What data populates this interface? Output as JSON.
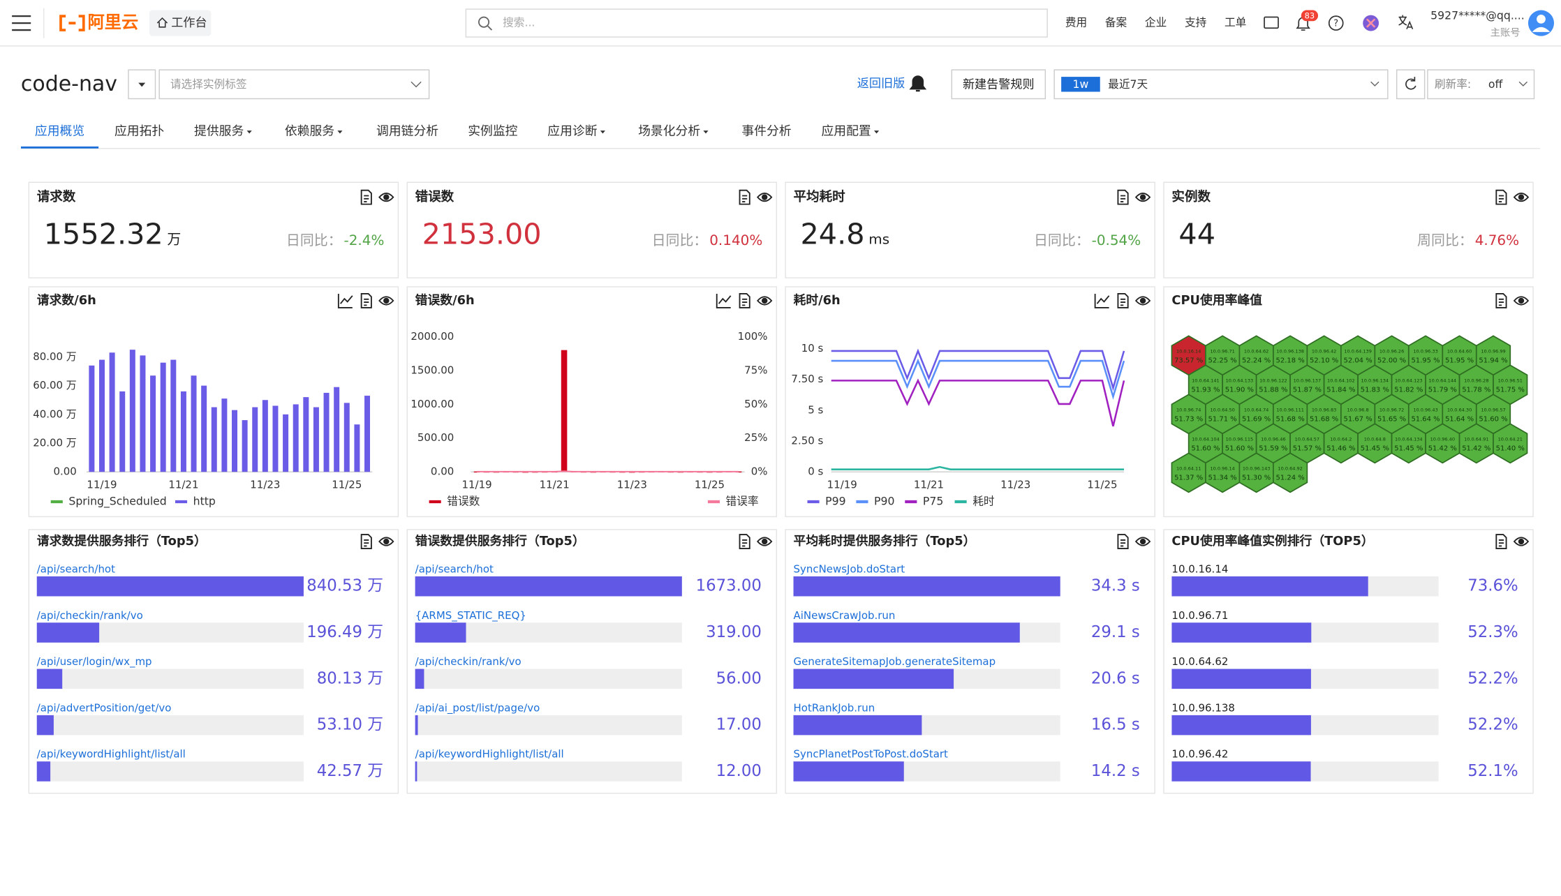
{
  "header": {
    "logo": "阿里云",
    "workbench": "工作台",
    "search_placeholder": "搜索...",
    "nav": [
      "费用",
      "备案",
      "企业",
      "支持",
      "工单"
    ],
    "notifications": "83",
    "account": "5927*****@qq....",
    "account_type": "主账号"
  },
  "toolbar": {
    "app": "code-nav",
    "instance_placeholder": "请选择实例标签",
    "back": "返回旧版",
    "new_alert": "新建告警规则",
    "range_tag": "1w",
    "range": "最近7天",
    "refresh_label": "刷新率:",
    "refresh": "off"
  },
  "tabs": [
    {
      "label": "应用概览",
      "active": true,
      "dropdown": false
    },
    {
      "label": "应用拓扑",
      "active": false,
      "dropdown": false
    },
    {
      "label": "提供服务",
      "active": false,
      "dropdown": true
    },
    {
      "label": "依赖服务",
      "active": false,
      "dropdown": true
    },
    {
      "label": "调用链分析",
      "active": false,
      "dropdown": false
    },
    {
      "label": "实例监控",
      "active": false,
      "dropdown": false
    },
    {
      "label": "应用诊断",
      "active": false,
      "dropdown": true
    },
    {
      "label": "场景化分析",
      "active": false,
      "dropdown": true
    },
    {
      "label": "事件分析",
      "active": false,
      "dropdown": false
    },
    {
      "label": "应用配置",
      "active": false,
      "dropdown": true
    }
  ],
  "stats": [
    {
      "title": "请求数",
      "value": "1552.32",
      "unit": "万",
      "compare_label": "日同比：",
      "change": "-2.4%",
      "change_color": "#52a447"
    },
    {
      "title": "错误数",
      "value": "2153.00",
      "value_color": "#d0313d",
      "compare_label": "日同比：",
      "change": "0.140%",
      "change_color": "#d0313d"
    },
    {
      "title": "平均耗时",
      "value": "24.8",
      "unit": "ms",
      "compare_label": "日同比：",
      "change": "-0.54%",
      "change_color": "#52a447"
    },
    {
      "title": "实例数",
      "value": "44",
      "compare_label": "周同比：",
      "change": "4.76%",
      "change_color": "#d0313d"
    }
  ],
  "chart_data": [
    {
      "type": "bar",
      "title": "请求数/6h",
      "categories": [
        null,
        "11/19",
        null,
        null,
        null,
        null,
        null,
        null,
        null,
        "11/21",
        null,
        null,
        null,
        null,
        null,
        null,
        null,
        "11/23",
        null,
        null,
        null,
        null,
        null,
        null,
        null,
        "11/25",
        null,
        null
      ],
      "series": [
        {
          "name": "Spring_Scheduled",
          "color": "#52b043",
          "values": [
            0,
            0,
            0,
            0,
            0,
            0,
            0,
            0,
            0,
            0,
            0,
            0,
            0,
            0,
            0,
            0,
            0,
            0,
            0,
            0,
            0,
            0,
            0,
            0,
            0,
            0,
            0,
            0
          ]
        },
        {
          "name": "http",
          "color": "#6b5ce7",
          "values": [
            74,
            78,
            83,
            56,
            85,
            81,
            67,
            76,
            78,
            56,
            67,
            60,
            45,
            51,
            43,
            36,
            45,
            50,
            46,
            40,
            47,
            52,
            45,
            55,
            59,
            48,
            33,
            53
          ]
        }
      ],
      "ylim": [
        0,
        90
      ],
      "yticks": [
        {
          "value": 0,
          "label": "0.00"
        },
        {
          "value": 20,
          "label": "20.00 万"
        },
        {
          "value": 40,
          "label": "40.00 万"
        },
        {
          "value": 60,
          "label": "60.00 万"
        },
        {
          "value": 80,
          "label": "80.00 万"
        }
      ]
    },
    {
      "type": "combo",
      "title": "错误数/6h",
      "categories": [
        "11/19",
        null,
        null,
        null,
        null,
        null,
        null,
        null,
        "11/21",
        null,
        null,
        null,
        null,
        null,
        null,
        null,
        "11/23",
        null,
        null,
        null,
        null,
        null,
        null,
        null,
        "11/25",
        null,
        null,
        null
      ],
      "series": [
        {
          "name": "错误数",
          "color": "#d0021b",
          "mark": "bar",
          "values": [
            6,
            5,
            4,
            6,
            5,
            3,
            4,
            5,
            6,
            1800,
            8,
            5,
            4,
            6,
            5,
            4,
            3,
            5,
            6,
            7,
            5,
            4,
            6,
            5,
            4,
            5,
            7,
            6
          ]
        },
        {
          "name": "错误率",
          "color": "#f5799a",
          "mark": "line",
          "axis": "y2",
          "values": [
            0.2,
            0.2,
            0.2,
            0.2,
            0.2,
            0.2,
            0.2,
            0.2,
            0.2,
            0.5,
            0.2,
            0.2,
            0.2,
            0.2,
            0.2,
            0.2,
            0.2,
            0.2,
            0.2,
            0.2,
            0.2,
            0.2,
            0.2,
            0.2,
            0.2,
            0.2,
            0.2,
            0.2
          ]
        }
      ],
      "ylim": [
        0,
        2000
      ],
      "yticks": [
        {
          "value": 0,
          "label": "0.00"
        },
        {
          "value": 500,
          "label": "500.00"
        },
        {
          "value": 1000,
          "label": "1000.00"
        },
        {
          "value": 1500,
          "label": "1500.00"
        },
        {
          "value": 2000,
          "label": "2000.00"
        }
      ],
      "y2lim": [
        0,
        100
      ],
      "y2ticks": [
        {
          "value": 0,
          "label": "0%"
        },
        {
          "value": 25,
          "label": "25%"
        },
        {
          "value": 50,
          "label": "50%"
        },
        {
          "value": 75,
          "label": "75%"
        },
        {
          "value": 100,
          "label": "100%"
        }
      ]
    },
    {
      "type": "line",
      "title": "耗时/6h",
      "categories": [
        null,
        "11/19",
        null,
        null,
        null,
        null,
        null,
        null,
        null,
        "11/21",
        null,
        null,
        null,
        null,
        null,
        null,
        null,
        "11/23",
        null,
        null,
        null,
        null,
        null,
        null,
        null,
        "11/25",
        null,
        null
      ],
      "series": [
        {
          "name": "P99",
          "color": "#6b5ce7",
          "values": [
            9.8,
            9.8,
            9.8,
            9.8,
            9.8,
            9.8,
            9.8,
            7.6,
            9.8,
            7.6,
            9.8,
            9.8,
            9.8,
            9.8,
            9.8,
            9.8,
            9.8,
            9.8,
            9.8,
            9.8,
            9.8,
            7.6,
            7.6,
            9.8,
            9.8,
            9.8,
            6.8,
            9.8
          ]
        },
        {
          "name": "P90",
          "color": "#5b8ff9",
          "values": [
            9.0,
            9.0,
            9.0,
            9.0,
            9.0,
            9.0,
            9.0,
            6.9,
            9.0,
            6.9,
            9.0,
            9.0,
            9.0,
            9.0,
            9.0,
            9.0,
            9.0,
            9.0,
            9.0,
            9.0,
            9.0,
            6.9,
            6.9,
            9.0,
            9.0,
            9.0,
            6.1,
            9.0
          ]
        },
        {
          "name": "P75",
          "color": "#a020c0",
          "values": [
            7.4,
            7.4,
            7.4,
            7.4,
            7.4,
            7.4,
            7.4,
            5.5,
            7.4,
            5.5,
            7.4,
            7.4,
            7.4,
            7.4,
            7.4,
            7.4,
            7.4,
            7.4,
            7.4,
            7.4,
            7.4,
            5.5,
            5.5,
            7.4,
            7.4,
            7.4,
            3.7,
            7.4
          ]
        },
        {
          "name": "耗时",
          "color": "#2bb5a0",
          "values": [
            0.2,
            0.2,
            0.2,
            0.2,
            0.2,
            0.2,
            0.2,
            0.2,
            0.2,
            0.2,
            0.4,
            0.2,
            0.2,
            0.2,
            0.2,
            0.2,
            0.2,
            0.2,
            0.2,
            0.2,
            0.2,
            0.2,
            0.2,
            0.2,
            0.2,
            0.2,
            0.2,
            0.2
          ]
        }
      ],
      "ylim": [
        0,
        10
      ],
      "yticks": [
        {
          "value": 0,
          "label": "0 s"
        },
        {
          "value": 2.5,
          "label": "2.50 s"
        },
        {
          "value": 5,
          "label": "5 s"
        },
        {
          "value": 7.5,
          "label": "7.50 s"
        },
        {
          "value": 10,
          "label": "10 s"
        }
      ]
    },
    {
      "type": "honeycomb",
      "title": "CPU使用率峰值",
      "color": "#55b23f",
      "highlight": "max",
      "highlight_color": "#c9252f",
      "labels": [
        "10.0.16.14",
        "10.0.96.71",
        "10.0.64.62",
        "10.0.96.138",
        "10.0.96.42",
        "10.0.64.139",
        "10.0.96.26",
        "10.0.96.33",
        "10.0.64.60",
        "10.0.96.99",
        "10.0.64.141",
        "10.0.64.133",
        "10.0.96.122",
        "10.0.96.137",
        "10.0.64.102",
        "10.0.96.134",
        "10.0.64.123",
        "10.0.64.144",
        "10.0.96.28",
        "10.0.96.51",
        "10.0.96.74",
        "10.0.64.50",
        "10.0.64.74",
        "10.0.96.111",
        "10.0.96.83",
        "10.0.96.8",
        "10.0.96.72",
        "10.0.96.43",
        "10.0.64.30",
        "10.0.96.57",
        "10.0.64.104",
        "10.0.96.115",
        "10.0.96.46",
        "10.0.64.57",
        "10.0.64.2",
        "10.0.64.8",
        "10.0.64.134",
        "10.0.96.40",
        "10.0.64.91",
        "10.0.64.21",
        "10.0.64.11",
        "10.0.96.14",
        "10.0.96.143",
        "10.0.64.92"
      ],
      "values": [
        73.57,
        52.25,
        52.24,
        52.18,
        52.1,
        52.04,
        52.0,
        51.95,
        51.95,
        51.94,
        51.93,
        51.9,
        51.88,
        51.87,
        51.84,
        51.83,
        51.82,
        51.79,
        51.78,
        51.75,
        51.73,
        51.71,
        51.69,
        51.68,
        51.68,
        51.67,
        51.65,
        51.64,
        51.64,
        51.6,
        51.6,
        51.6,
        51.59,
        51.57,
        51.46,
        51.45,
        51.45,
        51.42,
        51.42,
        51.4,
        51.37,
        51.34,
        51.3,
        51.24
      ],
      "value_labels": [
        "73.57 %",
        "52.25 %",
        "52.24 %",
        "52.18 %",
        "52.10 %",
        "52.04 %",
        "52.00 %",
        "51.95 %",
        "51.95 %",
        "51.94 %",
        "51.93 %",
        "51.90 %",
        "51.88 %",
        "51.87 %",
        "51.84 %",
        "51.83 %",
        "51.82 %",
        "51.79 %",
        "51.78 %",
        "51.75 %",
        "51.73 %",
        "51.71 %",
        "51.69 %",
        "51.68 %",
        "51.68 %",
        "51.67 %",
        "51.65 %",
        "51.64 %",
        "51.64 %",
        "51.60 %",
        "51.60 %",
        "51.60 %",
        "51.59 %",
        "51.57 %",
        "51.46 %",
        "51.45 %",
        "51.45 %",
        "51.42 %",
        "51.42 %",
        "51.40 %",
        "51.37 %",
        "51.34 %",
        "51.30 %",
        "51.24 %"
      ]
    },
    {
      "type": "ranking",
      "title": "请求数提供服务排行（Top5）",
      "color": "#6159e6",
      "label_color": "#1c6fd8",
      "categories": [
        "/api/search/hot",
        "/api/checkin/rank/vo",
        "/api/user/login/wx_mp",
        "/api/advertPosition/get/vo",
        "/api/keywordHighlight/list/all"
      ],
      "values": [
        840.53,
        196.49,
        80.13,
        53.1,
        42.57
      ],
      "value_labels": [
        "840.53 万",
        "196.49 万",
        "80.13 万",
        "53.10 万",
        "42.57 万"
      ],
      "xlim": [
        0,
        840.53
      ]
    },
    {
      "type": "ranking",
      "title": "错误数提供服务排行（Top5）",
      "color": "#6159e6",
      "label_color": "#1c6fd8",
      "categories": [
        "/api/search/hot",
        "{ARMS_STATIC_REQ}",
        "/api/checkin/rank/vo",
        "/api/ai_post/list/page/vo",
        "/api/keywordHighlight/list/all"
      ],
      "values": [
        1673,
        319,
        56,
        17,
        12
      ],
      "value_labels": [
        "1673.00",
        "319.00",
        "56.00",
        "17.00",
        "12.00"
      ],
      "xlim": [
        0,
        1673
      ]
    },
    {
      "type": "ranking",
      "title": "平均耗时提供服务排行（Top5）",
      "color": "#6159e6",
      "label_color": "#1c6fd8",
      "categories": [
        "SyncNewsJob.doStart",
        "AiNewsCrawJob.run",
        "GenerateSitemapJob.generateSitemap",
        "HotRankJob.run",
        "SyncPlanetPostToPost.doStart"
      ],
      "values": [
        34.3,
        29.1,
        20.6,
        16.5,
        14.2
      ],
      "value_labels": [
        "34.3 s",
        "29.1 s",
        "20.6 s",
        "16.5 s",
        "14.2 s"
      ],
      "xlim": [
        0,
        34.3
      ]
    },
    {
      "type": "ranking",
      "title": "CPU使用率峰值实例排行（TOP5）",
      "color": "#6159e6",
      "label_color": "#222222",
      "categories": [
        "10.0.16.14",
        "10.0.96.71",
        "10.0.64.62",
        "10.0.96.138",
        "10.0.96.42"
      ],
      "values": [
        73.6,
        52.3,
        52.2,
        52.2,
        52.1
      ],
      "value_labels": [
        "73.6%",
        "52.3%",
        "52.2%",
        "52.2%",
        "52.1%"
      ],
      "xlim": [
        0,
        100
      ]
    }
  ]
}
